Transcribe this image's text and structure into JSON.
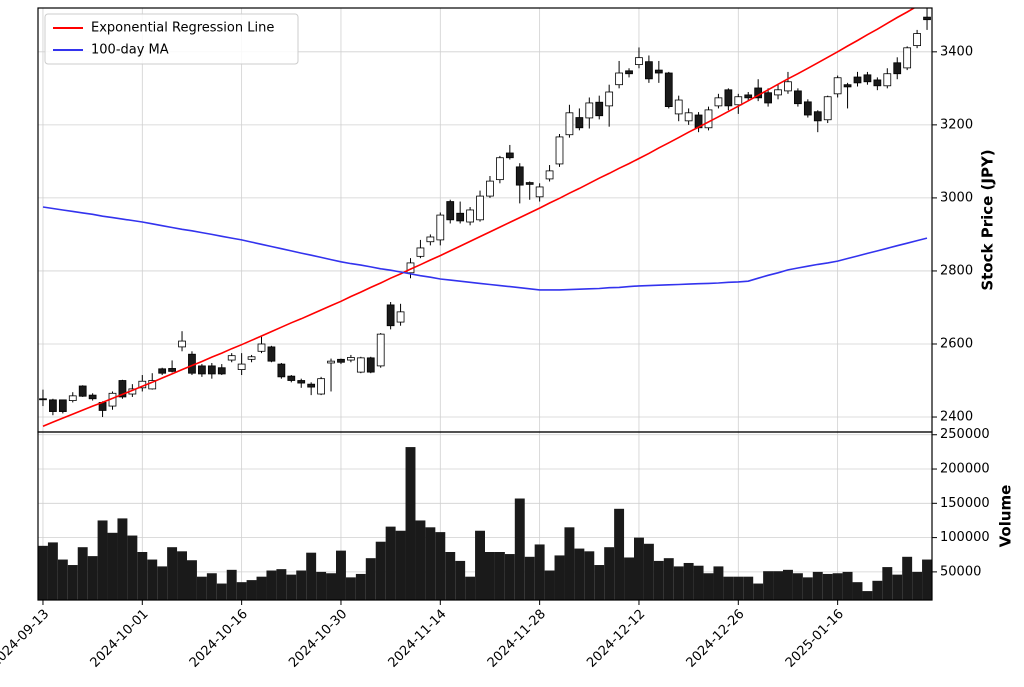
{
  "chart_data": [
    {
      "type": "candlestick",
      "ylabel": "Stock Price (JPY)",
      "ylim": [
        2359,
        3520
      ],
      "yticks": [
        2400,
        2600,
        2800,
        3000,
        3200,
        3400
      ],
      "grid": true,
      "up_color": "#ffffff",
      "down_color": "#1a1a1a",
      "legend": "upper left",
      "open": [
        2450,
        2447,
        2447,
        2445,
        2485,
        2460,
        2440,
        2430,
        2500,
        2463,
        2480,
        2477,
        2532,
        2533,
        2592,
        2572,
        2540,
        2540,
        2535,
        2556,
        2530,
        2558,
        2580,
        2592,
        2545,
        2512,
        2500,
        2490,
        2463,
        2548,
        2558,
        2556,
        2523,
        2562,
        2540,
        2707,
        2660,
        2795,
        2840,
        2880,
        2885,
        2990,
        2958,
        2934,
        2940,
        3005,
        3050,
        3123,
        3085,
        3042,
        3003,
        3052,
        3093,
        3173,
        3220,
        3219,
        3262,
        3252,
        3310,
        3348,
        3365,
        3373,
        3350,
        3342,
        3230,
        3211,
        3227,
        3192,
        3252,
        3296,
        3255,
        3282,
        3301,
        3288,
        3282,
        3293,
        3293,
        3263,
        3236,
        3214,
        3285,
        3310,
        3331,
        3337,
        3323,
        3307,
        3370,
        3356,
        3417,
        3495
      ],
      "high": [
        2475,
        2450,
        2448,
        2468,
        2487,
        2465,
        2443,
        2470,
        2502,
        2490,
        2515,
        2520,
        2535,
        2555,
        2635,
        2580,
        2545,
        2548,
        2545,
        2575,
        2575,
        2570,
        2620,
        2595,
        2548,
        2515,
        2505,
        2495,
        2510,
        2560,
        2560,
        2570,
        2565,
        2565,
        2630,
        2715,
        2710,
        2835,
        2885,
        2900,
        2960,
        2995,
        2990,
        2975,
        3020,
        3060,
        3115,
        3145,
        3095,
        3045,
        3040,
        3090,
        3175,
        3255,
        3245,
        3275,
        3280,
        3310,
        3375,
        3355,
        3412,
        3390,
        3375,
        3345,
        3280,
        3245,
        3235,
        3250,
        3285,
        3300,
        3285,
        3290,
        3325,
        3300,
        3310,
        3345,
        3300,
        3270,
        3240,
        3280,
        3335,
        3315,
        3345,
        3345,
        3330,
        3355,
        3385,
        3415,
        3460,
        3520
      ],
      "low": [
        2430,
        2405,
        2410,
        2440,
        2455,
        2445,
        2400,
        2420,
        2450,
        2455,
        2470,
        2475,
        2515,
        2522,
        2580,
        2515,
        2510,
        2505,
        2515,
        2550,
        2515,
        2550,
        2575,
        2550,
        2505,
        2495,
        2480,
        2460,
        2460,
        2470,
        2545,
        2550,
        2520,
        2520,
        2535,
        2640,
        2650,
        2780,
        2835,
        2870,
        2870,
        2930,
        2930,
        2925,
        2935,
        3000,
        3040,
        3105,
        2985,
        2995,
        2990,
        3045,
        3085,
        3165,
        3185,
        3190,
        3215,
        3195,
        3300,
        3330,
        3355,
        3315,
        3315,
        3245,
        3210,
        3200,
        3180,
        3185,
        3245,
        3240,
        3230,
        3265,
        3265,
        3250,
        3270,
        3285,
        3250,
        3220,
        3180,
        3205,
        3275,
        3245,
        3305,
        3310,
        3295,
        3300,
        3325,
        3350,
        3410,
        3460
      ],
      "close": [
        2448,
        2415,
        2415,
        2458,
        2457,
        2450,
        2418,
        2465,
        2455,
        2477,
        2498,
        2500,
        2520,
        2525,
        2608,
        2520,
        2518,
        2518,
        2518,
        2568,
        2545,
        2565,
        2600,
        2553,
        2510,
        2500,
        2493,
        2482,
        2505,
        2553,
        2550,
        2563,
        2562,
        2523,
        2627,
        2650,
        2688,
        2822,
        2863,
        2893,
        2953,
        2940,
        2937,
        2967,
        3005,
        3046,
        3110,
        3110,
        3035,
        3037,
        3030,
        3074,
        3167,
        3233,
        3192,
        3260,
        3225,
        3290,
        3342,
        3340,
        3384,
        3326,
        3342,
        3250,
        3268,
        3233,
        3192,
        3241,
        3274,
        3252,
        3277,
        3274,
        3274,
        3260,
        3296,
        3318,
        3258,
        3227,
        3211,
        3277,
        3329,
        3304,
        3315,
        3318,
        3307,
        3340,
        3340,
        3411,
        3450,
        3488
      ],
      "series": [
        {
          "name": "Exponential Regression Line",
          "color": "#ff0000",
          "values": [
            2375,
            2386,
            2397,
            2408,
            2419,
            2430,
            2440,
            2451,
            2462,
            2473,
            2484,
            2495,
            2507,
            2518,
            2530,
            2541,
            2552,
            2564,
            2575,
            2587,
            2598,
            2610,
            2622,
            2634,
            2646,
            2658,
            2669,
            2681,
            2693,
            2705,
            2717,
            2730,
            2742,
            2755,
            2767,
            2780,
            2792,
            2805,
            2817,
            2830,
            2842,
            2855,
            2868,
            2881,
            2894,
            2907,
            2920,
            2933,
            2946,
            2959,
            2972,
            2986,
            2999,
            3013,
            3026,
            3040,
            3054,
            3067,
            3081,
            3094,
            3108,
            3122,
            3137,
            3151,
            3165,
            3180,
            3194,
            3208,
            3222,
            3237,
            3251,
            3266,
            3281,
            3296,
            3311,
            3326,
            3340,
            3355,
            3370,
            3385,
            3400,
            3416,
            3431,
            3447,
            3462,
            3478,
            3494,
            3509,
            3525,
            3540
          ]
        },
        {
          "name": "100-day MA",
          "color": "#3333ee",
          "values": [
            2975,
            2971,
            2967,
            2963,
            2959,
            2955,
            2950,
            2946,
            2942,
            2938,
            2934,
            2929,
            2924,
            2919,
            2914,
            2910,
            2905,
            2900,
            2895,
            2890,
            2885,
            2879,
            2873,
            2867,
            2861,
            2855,
            2849,
            2843,
            2837,
            2831,
            2825,
            2820,
            2816,
            2811,
            2806,
            2802,
            2797,
            2792,
            2787,
            2783,
            2778,
            2775,
            2772,
            2769,
            2766,
            2763,
            2760,
            2757,
            2754,
            2751,
            2748,
            2748,
            2748,
            2749,
            2750,
            2751,
            2752,
            2754,
            2755,
            2757,
            2759,
            2760,
            2761,
            2762,
            2763,
            2764,
            2765,
            2766,
            2767,
            2769,
            2770,
            2772,
            2780,
            2788,
            2795,
            2803,
            2808,
            2813,
            2818,
            2822,
            2827,
            2834,
            2841,
            2848,
            2855,
            2862,
            2869,
            2876,
            2883,
            2890
          ]
        }
      ]
    },
    {
      "type": "bar",
      "ylabel": "Volume",
      "color": "#1a1a1a",
      "ylim": [
        9000,
        254000
      ],
      "yticks": [
        50000,
        100000,
        150000,
        200000,
        250000
      ],
      "grid": true,
      "categories": [
        "2024-09-13",
        null,
        null,
        null,
        null,
        null,
        null,
        null,
        null,
        null,
        "2024-10-01",
        null,
        null,
        null,
        null,
        null,
        null,
        null,
        null,
        null,
        "2024-10-16",
        null,
        null,
        null,
        null,
        null,
        null,
        null,
        null,
        null,
        "2024-10-30",
        null,
        null,
        null,
        null,
        null,
        null,
        null,
        null,
        null,
        "2024-11-14",
        null,
        null,
        null,
        null,
        null,
        null,
        null,
        null,
        null,
        "2024-11-28",
        null,
        null,
        null,
        null,
        null,
        null,
        null,
        null,
        null,
        "2024-12-12",
        null,
        null,
        null,
        null,
        null,
        null,
        null,
        null,
        null,
        "2024-12-26",
        null,
        null,
        null,
        null,
        null,
        null,
        null,
        null,
        null,
        "2025-01-16",
        null,
        null,
        null,
        null,
        null,
        null,
        null,
        null,
        null
      ],
      "values": [
        88000,
        93000,
        68000,
        60000,
        86000,
        73000,
        125000,
        107000,
        128000,
        103000,
        79000,
        68000,
        58000,
        86000,
        80000,
        67000,
        43000,
        48000,
        33000,
        53000,
        35000,
        38000,
        43000,
        52000,
        54000,
        46000,
        52000,
        78000,
        50000,
        48000,
        81000,
        42000,
        47000,
        70000,
        94000,
        116000,
        110000,
        232000,
        125000,
        115000,
        108000,
        79000,
        66000,
        43000,
        110000,
        79000,
        79000,
        76000,
        157000,
        72000,
        90000,
        52000,
        74000,
        115000,
        84000,
        80000,
        60000,
        86000,
        142000,
        71000,
        100000,
        91000,
        66000,
        70000,
        58000,
        63000,
        59000,
        48000,
        58000,
        43000,
        43000,
        43000,
        33000,
        51000,
        51000,
        53000,
        48000,
        42000,
        50000,
        47000,
        48000,
        50000,
        35000,
        22000,
        37000,
        57000,
        46000,
        72000,
        50000,
        68000
      ]
    }
  ]
}
